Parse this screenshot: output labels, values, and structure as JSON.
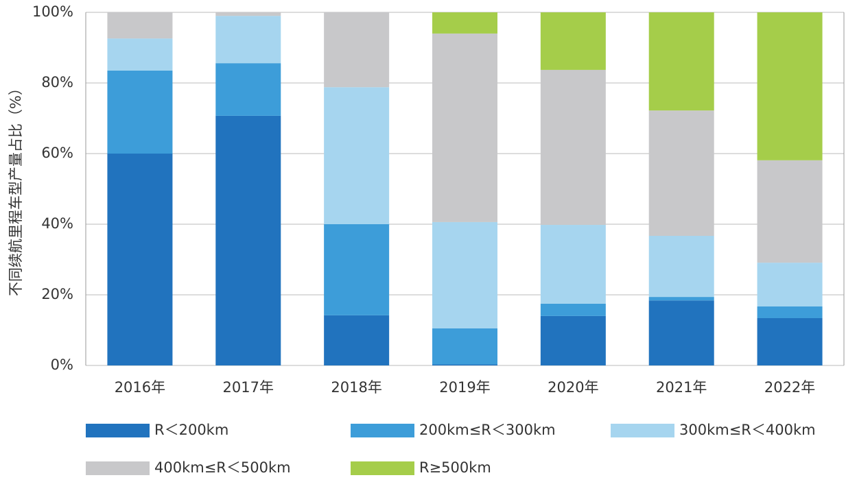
{
  "chart_data": {
    "type": "stacked_bar",
    "ylabel": "不同续航里程车型产量占比（%）",
    "categories": [
      "2016年",
      "2017年",
      "2018年",
      "2019年",
      "2020年",
      "2021年",
      "2022年"
    ],
    "series": [
      {
        "name": "R＜200km",
        "color": "#2173be",
        "values": [
          60.0,
          70.7,
          14.2,
          0.3,
          14.0,
          18.4,
          13.4
        ]
      },
      {
        "name": "200km≤R＜300km",
        "color": "#3d9dd9",
        "values": [
          23.5,
          14.9,
          25.8,
          10.2,
          3.5,
          1.0,
          3.3
        ]
      },
      {
        "name": "300km≤R＜400km",
        "color": "#a6d5ef",
        "values": [
          9.1,
          13.4,
          38.8,
          30.1,
          22.3,
          17.3,
          12.4
        ]
      },
      {
        "name": "400km≤R＜500km",
        "color": "#c8c8ca",
        "values": [
          7.4,
          1.0,
          21.2,
          53.4,
          43.9,
          35.5,
          29.0
        ]
      },
      {
        "name": "R≥500km",
        "color": "#a5cd4a",
        "values": [
          0,
          0,
          0,
          6.0,
          16.3,
          27.8,
          41.9
        ]
      }
    ],
    "ylim": [
      0,
      100
    ],
    "yticks": [
      {
        "value": 0,
        "label": "0%"
      },
      {
        "value": 20,
        "label": "20%"
      },
      {
        "value": 40,
        "label": "40%"
      },
      {
        "value": 60,
        "label": "60%"
      },
      {
        "value": 80,
        "label": "80%"
      },
      {
        "value": 100,
        "label": "100%"
      }
    ],
    "grid": true
  }
}
